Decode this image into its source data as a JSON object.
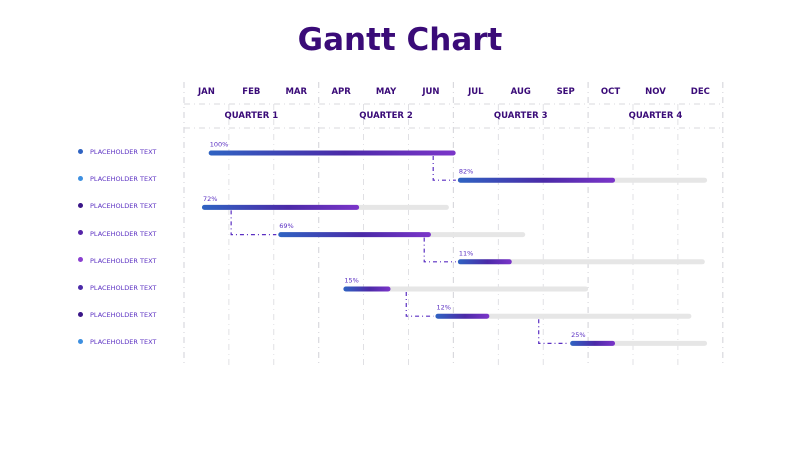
{
  "title": "Gantt Chart",
  "colors": {
    "title": "#3a0b78",
    "header_text": "#3a0b78",
    "track": "#e6e6e6",
    "grid": "#d9d9de",
    "gradient_start": "#2f63c2",
    "gradient_mid": "#4b2aa8",
    "gradient_end": "#7b35c9",
    "connector": "#5a2fc2",
    "label_text": "#5a2fc2"
  },
  "chart_data": {
    "type": "gantt",
    "title": "Gantt Chart",
    "months": [
      "JAN",
      "FEB",
      "MAR",
      "APR",
      "MAY",
      "JUN",
      "JUL",
      "AUG",
      "SEP",
      "OCT",
      "NOV",
      "DEC"
    ],
    "quarters": [
      "QUARTER 1",
      "QUARTER 2",
      "QUARTER 3",
      "QUARTER 4"
    ],
    "tasks": [
      {
        "label": "PLACEHOLDER TEXT",
        "dot_color": "#2f63c2",
        "start": 0.55,
        "end": 6.05,
        "track_end": 6.05,
        "progress": 100,
        "progress_label": "100%"
      },
      {
        "label": "PLACEHOLDER TEXT",
        "dot_color": "#3d8fe0",
        "start": 6.1,
        "end": 9.6,
        "track_end": 11.65,
        "progress": 82,
        "progress_label": "82%"
      },
      {
        "label": "PLACEHOLDER TEXT",
        "dot_color": "#3a1688",
        "start": 0.4,
        "end": 3.9,
        "track_end": 5.9,
        "progress": 72,
        "progress_label": "72%"
      },
      {
        "label": "PLACEHOLDER TEXT",
        "dot_color": "#5524a8",
        "start": 2.1,
        "end": 5.5,
        "track_end": 7.6,
        "progress": 69,
        "progress_label": "69%"
      },
      {
        "label": "PLACEHOLDER TEXT",
        "dot_color": "#8a3fd0",
        "start": 6.1,
        "end": 7.3,
        "track_end": 11.6,
        "progress": 11,
        "progress_label": "11%"
      },
      {
        "label": "PLACEHOLDER TEXT",
        "dot_color": "#4b2aa8",
        "start": 3.55,
        "end": 4.6,
        "track_end": 9.0,
        "progress": 15,
        "progress_label": "15%"
      },
      {
        "label": "PLACEHOLDER TEXT",
        "dot_color": "#3a1688",
        "start": 5.6,
        "end": 6.8,
        "track_end": 11.3,
        "progress": 12,
        "progress_label": "12%"
      },
      {
        "label": "PLACEHOLDER TEXT",
        "dot_color": "#3d8fe0",
        "start": 8.6,
        "end": 9.6,
        "track_end": 11.65,
        "progress": 25,
        "progress_label": "25%"
      }
    ],
    "dependencies": [
      {
        "from": 0,
        "to": 1,
        "at": 5.55
      },
      {
        "from": 2,
        "to": 3,
        "at": 1.05
      },
      {
        "from": 3,
        "to": 4,
        "at": 5.35
      },
      {
        "from": 5,
        "to": 6,
        "at": 4.95
      },
      {
        "from": 6,
        "to": 7,
        "at": 7.9
      }
    ]
  }
}
